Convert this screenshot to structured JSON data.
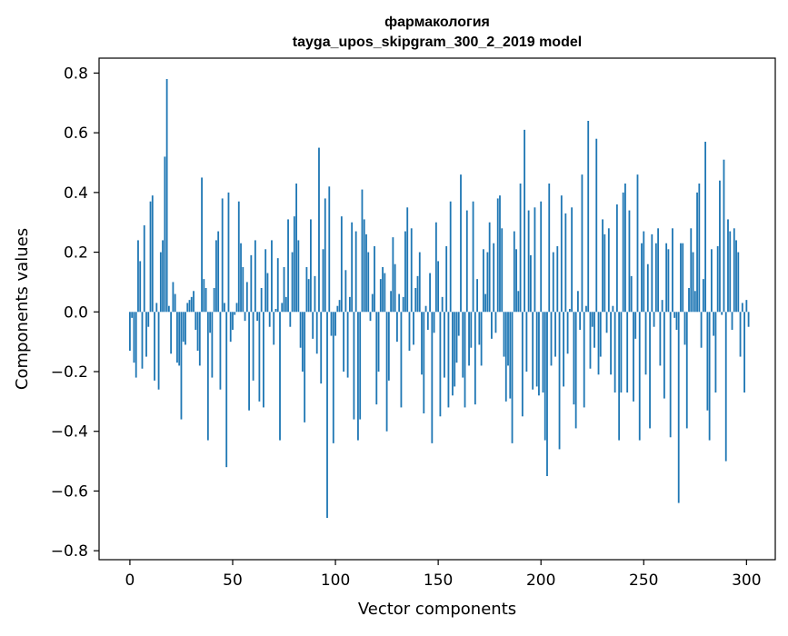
{
  "chart_data": {
    "type": "bar",
    "title": "фармакология",
    "subtitle": "tayga_upos_skipgram_300_2_2019 model",
    "xlabel": "Vector components",
    "ylabel": "Components values",
    "xlim": [
      -15,
      314
    ],
    "ylim": [
      -0.83,
      0.85
    ],
    "xticks": [
      0,
      50,
      100,
      150,
      200,
      250,
      300
    ],
    "xtick_labels": [
      "0",
      "50",
      "100",
      "150",
      "200",
      "250",
      "300"
    ],
    "yticks": [
      -0.8,
      -0.6,
      -0.4,
      -0.2,
      0.0,
      0.2,
      0.4,
      0.6,
      0.8
    ],
    "ytick_labels": [
      "−0.8",
      "−0.6",
      "−0.4",
      "−0.2",
      "0.0",
      "0.2",
      "0.4",
      "0.6",
      "0.8"
    ],
    "grid": false,
    "bar_color": "#1f77b4",
    "x_start": 0,
    "values": [
      -0.13,
      -0.02,
      -0.17,
      -0.22,
      0.24,
      0.17,
      -0.19,
      0.29,
      -0.15,
      -0.05,
      0.37,
      0.39,
      -0.23,
      0.03,
      -0.26,
      0.2,
      0.24,
      0.52,
      0.78,
      0.02,
      -0.14,
      0.1,
      0.06,
      -0.17,
      -0.18,
      -0.36,
      -0.1,
      -0.11,
      0.03,
      0.04,
      0.05,
      0.07,
      -0.06,
      -0.13,
      -0.18,
      0.45,
      0.11,
      0.08,
      -0.43,
      -0.07,
      -0.22,
      0.08,
      0.24,
      0.27,
      -0.26,
      0.38,
      0.03,
      -0.52,
      0.4,
      -0.1,
      -0.06,
      -0.01,
      0.03,
      0.37,
      0.23,
      0.15,
      -0.03,
      0.1,
      -0.33,
      0.19,
      -0.23,
      0.24,
      -0.03,
      -0.3,
      0.08,
      -0.32,
      0.21,
      0.13,
      -0.05,
      0.24,
      -0.11,
      0.01,
      0.18,
      -0.43,
      0.03,
      0.15,
      0.05,
      0.31,
      -0.05,
      0.2,
      0.32,
      0.43,
      0.24,
      -0.12,
      -0.2,
      -0.37,
      0.15,
      0.11,
      0.31,
      -0.09,
      0.12,
      -0.14,
      0.55,
      -0.24,
      0.21,
      0.38,
      -0.69,
      0.42,
      -0.08,
      -0.44,
      -0.08,
      0.02,
      0.04,
      0.32,
      -0.2,
      0.14,
      -0.22,
      0.05,
      0.3,
      -0.36,
      0.27,
      -0.43,
      -0.36,
      0.41,
      0.31,
      0.26,
      0.2,
      -0.03,
      0.06,
      0.22,
      -0.31,
      -0.2,
      0.11,
      0.15,
      0.13,
      -0.4,
      -0.23,
      0.07,
      0.25,
      0.16,
      -0.1,
      0.06,
      -0.32,
      0.05,
      0.27,
      0.35,
      -0.13,
      0.28,
      -0.11,
      0.08,
      0.12,
      0.2,
      -0.21,
      -0.34,
      0.02,
      -0.06,
      0.13,
      -0.44,
      -0.07,
      0.3,
      0.17,
      -0.35,
      0.05,
      -0.22,
      0.22,
      -0.32,
      0.37,
      -0.28,
      -0.25,
      -0.17,
      -0.08,
      0.46,
      -0.22,
      -0.32,
      0.34,
      -0.18,
      -0.12,
      0.37,
      -0.31,
      0.11,
      -0.11,
      -0.18,
      0.21,
      0.06,
      0.2,
      0.3,
      -0.09,
      0.23,
      -0.07,
      0.38,
      0.39,
      0.28,
      -0.15,
      -0.3,
      -0.18,
      -0.29,
      -0.44,
      0.27,
      0.21,
      0.07,
      0.43,
      -0.35,
      0.61,
      -0.2,
      0.34,
      0.19,
      -0.26,
      0.35,
      -0.25,
      -0.28,
      0.37,
      -0.27,
      -0.43,
      -0.55,
      0.43,
      -0.18,
      0.2,
      -0.15,
      0.22,
      -0.46,
      0.39,
      -0.25,
      0.33,
      -0.14,
      0.01,
      0.35,
      -0.31,
      -0.39,
      0.07,
      -0.06,
      0.46,
      -0.32,
      0.02,
      0.64,
      -0.19,
      -0.05,
      -0.12,
      0.58,
      -0.21,
      -0.15,
      0.31,
      0.26,
      -0.07,
      0.28,
      -0.21,
      0.02,
      -0.27,
      0.36,
      -0.43,
      -0.27,
      0.4,
      0.43,
      -0.27,
      0.34,
      0.12,
      -0.3,
      -0.09,
      0.46,
      -0.43,
      0.23,
      0.27,
      -0.21,
      0.16,
      -0.39,
      0.26,
      -0.05,
      0.23,
      0.28,
      -0.18,
      0.04,
      -0.29,
      0.23,
      0.21,
      -0.42,
      0.28,
      -0.02,
      -0.06,
      -0.64,
      0.23,
      0.23,
      -0.11,
      -0.39,
      0.08,
      0.28,
      0.2,
      0.07,
      0.4,
      0.43,
      -0.12,
      0.11,
      0.57,
      -0.33,
      -0.43,
      0.21,
      -0.08,
      -0.27,
      0.22,
      0.44,
      -0.01,
      0.51,
      -0.5,
      0.31,
      0.27,
      -0.06,
      0.28,
      0.24,
      0.2,
      -0.15,
      0.03,
      -0.27,
      0.04,
      -0.05
    ]
  }
}
